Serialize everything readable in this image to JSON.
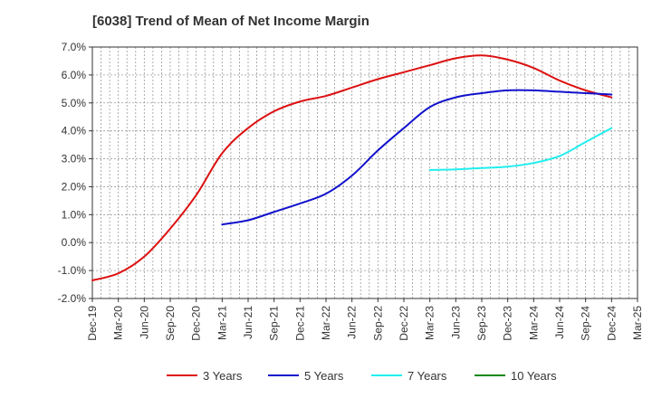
{
  "chart_data": {
    "type": "line",
    "title": "[6038]  Trend of Mean of Net Income Margin",
    "xlabel": "",
    "ylabel": "",
    "ylim": [
      -2.0,
      7.0
    ],
    "y_ticks": [
      "-2.0%",
      "-1.0%",
      "0.0%",
      "1.0%",
      "2.0%",
      "3.0%",
      "4.0%",
      "5.0%",
      "6.0%",
      "7.0%"
    ],
    "x_ticks": [
      "Dec-19",
      "Mar-20",
      "Jun-20",
      "Sep-20",
      "Dec-20",
      "Mar-21",
      "Jun-21",
      "Sep-21",
      "Dec-21",
      "Mar-22",
      "Jun-22",
      "Sep-22",
      "Dec-22",
      "Mar-23",
      "Jun-23",
      "Sep-23",
      "Dec-23",
      "Mar-24",
      "Jun-24",
      "Sep-24",
      "Dec-24",
      "Mar-25"
    ],
    "grid": true,
    "legend_position": "bottom",
    "series": [
      {
        "name": "3 Years",
        "color": "#dd1111",
        "x": [
          "Dec-19",
          "Mar-20",
          "Jun-20",
          "Sep-20",
          "Dec-20",
          "Mar-21",
          "Jun-21",
          "Sep-21",
          "Dec-21",
          "Mar-22",
          "Jun-22",
          "Sep-22",
          "Dec-22",
          "Mar-23",
          "Jun-23",
          "Sep-23",
          "Dec-23",
          "Mar-24",
          "Jun-24",
          "Sep-24",
          "Dec-24"
        ],
        "values": [
          -1.35,
          -1.1,
          -0.5,
          0.5,
          1.7,
          3.2,
          4.1,
          4.7,
          5.05,
          5.25,
          5.55,
          5.85,
          6.1,
          6.35,
          6.6,
          6.7,
          6.55,
          6.25,
          5.8,
          5.45,
          5.2
        ]
      },
      {
        "name": "5 Years",
        "color": "#1111cc",
        "x": [
          "Mar-21",
          "Jun-21",
          "Sep-21",
          "Dec-21",
          "Mar-22",
          "Jun-22",
          "Sep-22",
          "Dec-22",
          "Mar-23",
          "Jun-23",
          "Sep-23",
          "Dec-23",
          "Mar-24",
          "Jun-24",
          "Sep-24",
          "Dec-24"
        ],
        "values": [
          0.65,
          0.8,
          1.1,
          1.4,
          1.75,
          2.4,
          3.3,
          4.1,
          4.85,
          5.2,
          5.35,
          5.45,
          5.45,
          5.4,
          5.35,
          5.3
        ]
      },
      {
        "name": "7 Years",
        "color": "#22eeee",
        "x": [
          "Mar-23",
          "Jun-23",
          "Sep-23",
          "Dec-23",
          "Mar-24",
          "Jun-24",
          "Sep-24",
          "Dec-24"
        ],
        "values": [
          2.6,
          2.62,
          2.67,
          2.72,
          2.85,
          3.1,
          3.6,
          4.1
        ]
      },
      {
        "name": "10 Years",
        "color": "#118811",
        "x": [],
        "values": []
      }
    ]
  }
}
